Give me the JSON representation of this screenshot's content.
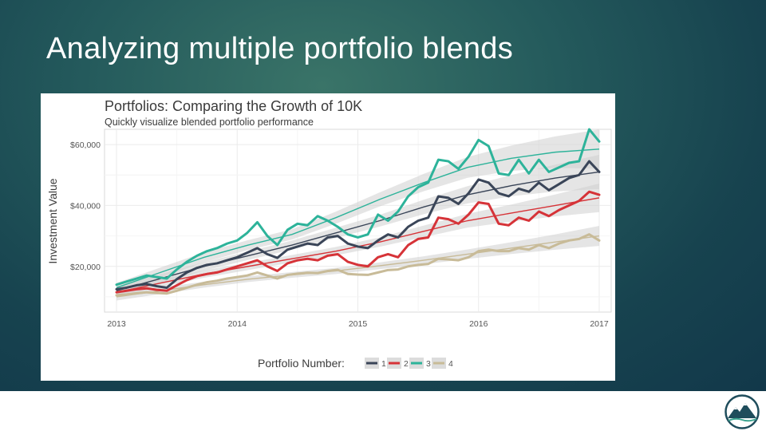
{
  "slide": {
    "title": "Analyzing multiple portfolio blends"
  },
  "colors": {
    "s1": "#3a4558",
    "s2": "#d63338",
    "s3": "#2db39a",
    "s4": "#c8bb98",
    "band": "#cfcfcf"
  },
  "chart_data": {
    "type": "line",
    "title": "Portfolios: Comparing the Growth of 10K",
    "subtitle": "Quickly visualize blended portfolio performance",
    "xlabel": "",
    "ylabel": "Investment Value",
    "xlim": [
      2013,
      2017
    ],
    "ylim": [
      5000,
      65000
    ],
    "x_ticks": [
      2013,
      2014,
      2015,
      2016,
      2017
    ],
    "x_tick_labels": [
      "2013",
      "2014",
      "2015",
      "2016",
      "2017"
    ],
    "y_ticks": [
      20000,
      40000,
      60000
    ],
    "y_tick_labels": [
      "$20,000",
      "$40,000",
      "$60,000"
    ],
    "legend_title": "Portfolio Number:",
    "legend_position": "bottom",
    "x": [
      2013.0,
      2013.083,
      2013.167,
      2013.25,
      2013.333,
      2013.417,
      2013.5,
      2013.583,
      2013.667,
      2013.75,
      2013.833,
      2013.917,
      2014.0,
      2014.083,
      2014.167,
      2014.25,
      2014.333,
      2014.417,
      2014.5,
      2014.583,
      2014.667,
      2014.75,
      2014.833,
      2014.917,
      2015.0,
      2015.083,
      2015.167,
      2015.25,
      2015.333,
      2015.417,
      2015.5,
      2015.583,
      2015.667,
      2015.75,
      2015.833,
      2015.917,
      2016.0,
      2016.083,
      2016.167,
      2016.25,
      2016.333,
      2016.417,
      2016.5,
      2016.583,
      2016.667,
      2016.75,
      2016.833,
      2016.917,
      2017.0
    ],
    "series": [
      {
        "name": "1",
        "values": [
          12500,
          13000,
          13800,
          14200,
          13500,
          13000,
          15800,
          18000,
          19500,
          20500,
          21000,
          22000,
          23000,
          24500,
          26000,
          24000,
          22800,
          25500,
          26500,
          27500,
          27000,
          29500,
          30000,
          27500,
          26500,
          26000,
          28500,
          30500,
          29500,
          33000,
          35000,
          36000,
          43000,
          42500,
          40500,
          44000,
          48500,
          47500,
          44000,
          43000,
          45500,
          44500,
          47500,
          45000,
          47000,
          49000,
          50000,
          54500,
          51000
        ]
      },
      {
        "name": "2",
        "values": [
          11500,
          12000,
          12500,
          12800,
          12300,
          12000,
          13800,
          15500,
          16800,
          17500,
          18000,
          19000,
          20000,
          21000,
          22000,
          20000,
          18500,
          21000,
          22000,
          22500,
          22000,
          23500,
          24000,
          21500,
          20500,
          20000,
          23000,
          24000,
          23000,
          27000,
          29000,
          29500,
          36000,
          35500,
          34000,
          37000,
          41000,
          40500,
          34000,
          33500,
          36000,
          35000,
          38000,
          36500,
          38500,
          40000,
          41500,
          44500,
          43500
        ]
      },
      {
        "name": "3",
        "values": [
          14000,
          15000,
          16000,
          17000,
          16500,
          16000,
          19000,
          21500,
          23500,
          25000,
          26000,
          27500,
          28500,
          31000,
          34500,
          30000,
          27000,
          32000,
          34000,
          33500,
          36500,
          35000,
          33000,
          30500,
          29500,
          30500,
          37000,
          35000,
          38000,
          43000,
          46000,
          47500,
          55000,
          54500,
          52000,
          56000,
          61500,
          59500,
          50500,
          50000,
          55000,
          50500,
          55000,
          51000,
          52500,
          54000,
          54500,
          65000,
          61000
        ]
      },
      {
        "name": "4",
        "values": [
          10500,
          10800,
          11200,
          11500,
          11300,
          11100,
          12000,
          13000,
          14000,
          14800,
          15300,
          16000,
          16500,
          17000,
          18000,
          17000,
          16000,
          17200,
          17600,
          17900,
          17800,
          18500,
          18900,
          17500,
          17300,
          17200,
          18000,
          18800,
          19000,
          20000,
          20500,
          20800,
          22500,
          22300,
          22000,
          23000,
          25000,
          25500,
          25000,
          25000,
          26000,
          25500,
          27000,
          26000,
          27500,
          28500,
          29000,
          30500,
          28500
        ]
      }
    ],
    "trend_lines": [
      {
        "name": "1",
        "values": [
          12000,
          16000,
          20000,
          23500,
          27000,
          31000,
          35000,
          39500,
          43500,
          46500,
          49000,
          51000
        ]
      },
      {
        "name": "2",
        "values": [
          11500,
          14500,
          17500,
          20000,
          22500,
          25000,
          28000,
          31500,
          35000,
          37500,
          40000,
          42500
        ]
      },
      {
        "name": "3",
        "values": [
          13000,
          18000,
          23000,
          27000,
          30500,
          36000,
          42000,
          47500,
          52500,
          55500,
          57500,
          58500
        ]
      },
      {
        "name": "4",
        "values": [
          10000,
          12000,
          14000,
          15800,
          17200,
          18500,
          20200,
          22000,
          24000,
          26000,
          28000,
          30000
        ]
      }
    ]
  }
}
